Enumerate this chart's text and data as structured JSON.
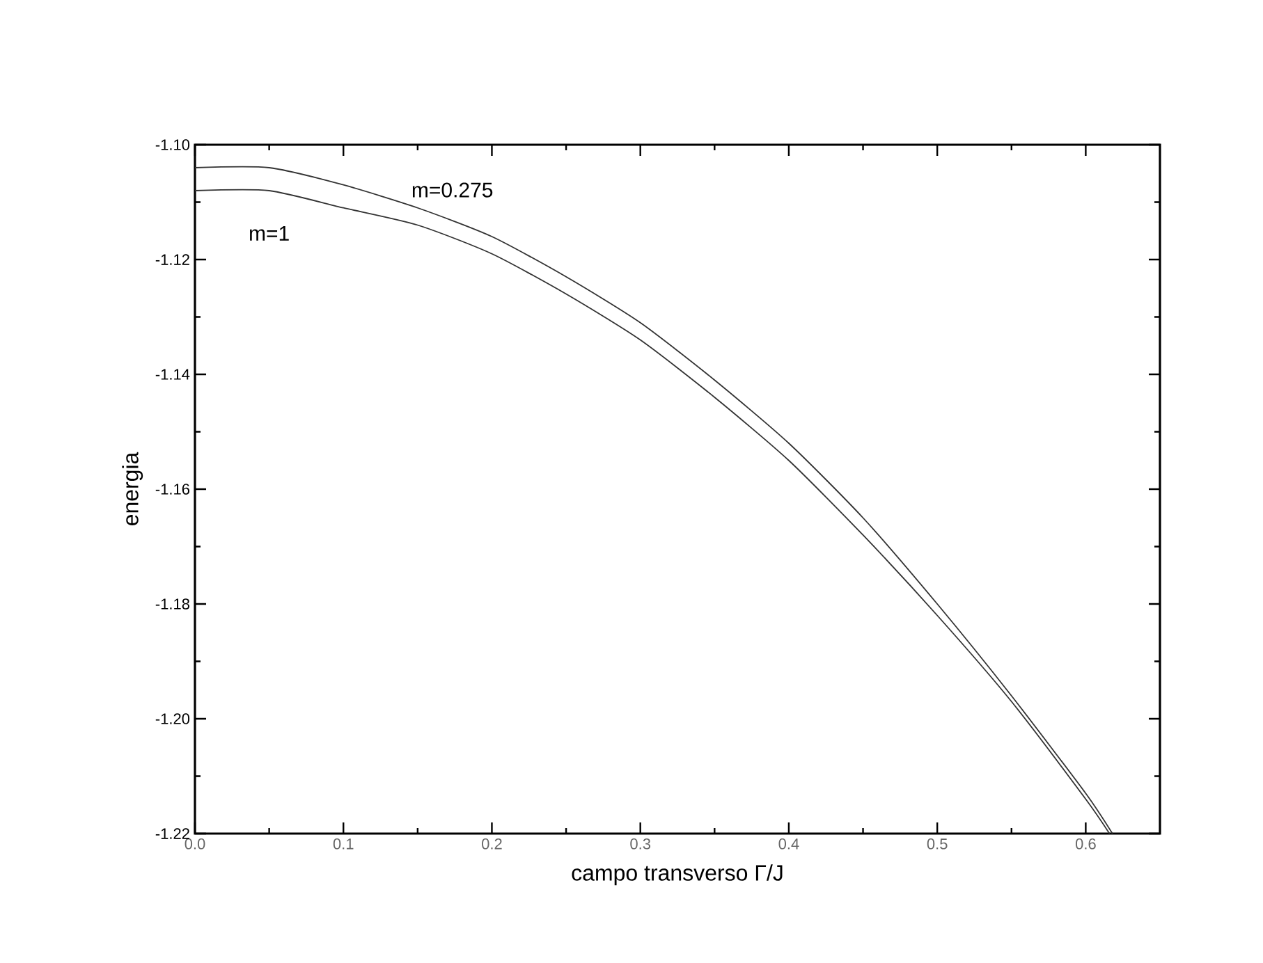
{
  "chart_data": {
    "type": "line",
    "xlabel": "campo transverso Γ/J",
    "ylabel": "energia",
    "series": [
      {
        "name": "m=0.275",
        "color": "#333333",
        "x": [
          0,
          0.05,
          0.1,
          0.15,
          0.2,
          0.25,
          0.3,
          0.35,
          0.4,
          0.45,
          0.5,
          0.55,
          0.6,
          0.618
        ],
        "values": [
          -1.104,
          -1.104,
          -1.107,
          -1.111,
          -1.116,
          -1.123,
          -1.131,
          -1.141,
          -1.152,
          -1.165,
          -1.18,
          -1.196,
          -1.213,
          -1.22
        ]
      },
      {
        "name": "m=1",
        "color": "#333333",
        "x": [
          0,
          0.05,
          0.1,
          0.15,
          0.2,
          0.25,
          0.3,
          0.35,
          0.4,
          0.45,
          0.5,
          0.55,
          0.6,
          0.616
        ],
        "values": [
          -1.108,
          -1.108,
          -1.111,
          -1.114,
          -1.119,
          -1.126,
          -1.134,
          -1.144,
          -1.155,
          -1.168,
          -1.182,
          -1.197,
          -1.214,
          -1.22
        ]
      }
    ],
    "xlim": [
      0,
      0.65
    ],
    "ylim": [
      -1.22,
      -1.1
    ],
    "xticks": [
      {
        "value": 0,
        "label": "0.0"
      },
      {
        "value": 0.1,
        "label": "0.1"
      },
      {
        "value": 0.2,
        "label": "0.2"
      },
      {
        "value": 0.3,
        "label": "0.3"
      },
      {
        "value": 0.4,
        "label": "0.4"
      },
      {
        "value": 0.5,
        "label": "0.5"
      },
      {
        "value": 0.6,
        "label": "0.6"
      }
    ],
    "yticks": [
      {
        "value": -1.22,
        "label": "-1.22"
      },
      {
        "value": -1.2,
        "label": "-1.20"
      },
      {
        "value": -1.18,
        "label": "-1.18"
      },
      {
        "value": -1.16,
        "label": "-1.16"
      },
      {
        "value": -1.14,
        "label": "-1.14"
      },
      {
        "value": -1.12,
        "label": "-1.12"
      },
      {
        "value": -1.1,
        "label": "-1.10"
      }
    ],
    "marker": "none",
    "line_style": "solid",
    "grid": false,
    "legend": false
  }
}
